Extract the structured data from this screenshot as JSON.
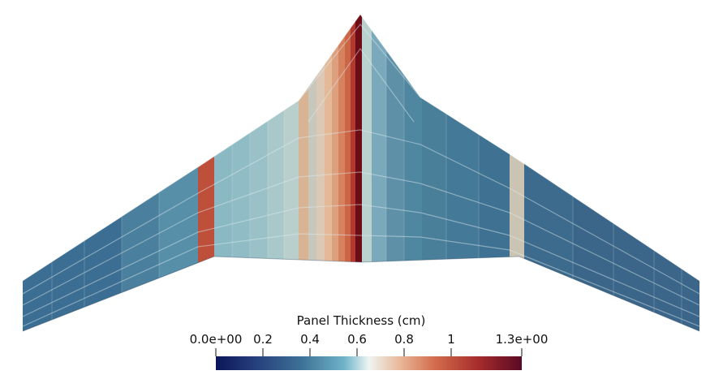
{
  "legend": {
    "title": "Panel Thickness (cm)",
    "range": [
      0.0,
      1.3
    ],
    "ticks": [
      {
        "value": 0.0,
        "label": "0.0e+00"
      },
      {
        "value": 0.2,
        "label": "0.2"
      },
      {
        "value": 0.4,
        "label": "0.4"
      },
      {
        "value": 0.6,
        "label": "0.6"
      },
      {
        "value": 0.8,
        "label": "0.8"
      },
      {
        "value": 1.0,
        "label": "1"
      },
      {
        "value": 1.3,
        "label": "1.3e+00"
      }
    ],
    "colormap": "blue-white-red diverging",
    "colors": {
      "low": "#0d1a5c",
      "mid_low": "#5fa7c2",
      "mid": "#eef3f1",
      "mid_high": "#d97a55",
      "high": "#5e0b22"
    }
  }
}
